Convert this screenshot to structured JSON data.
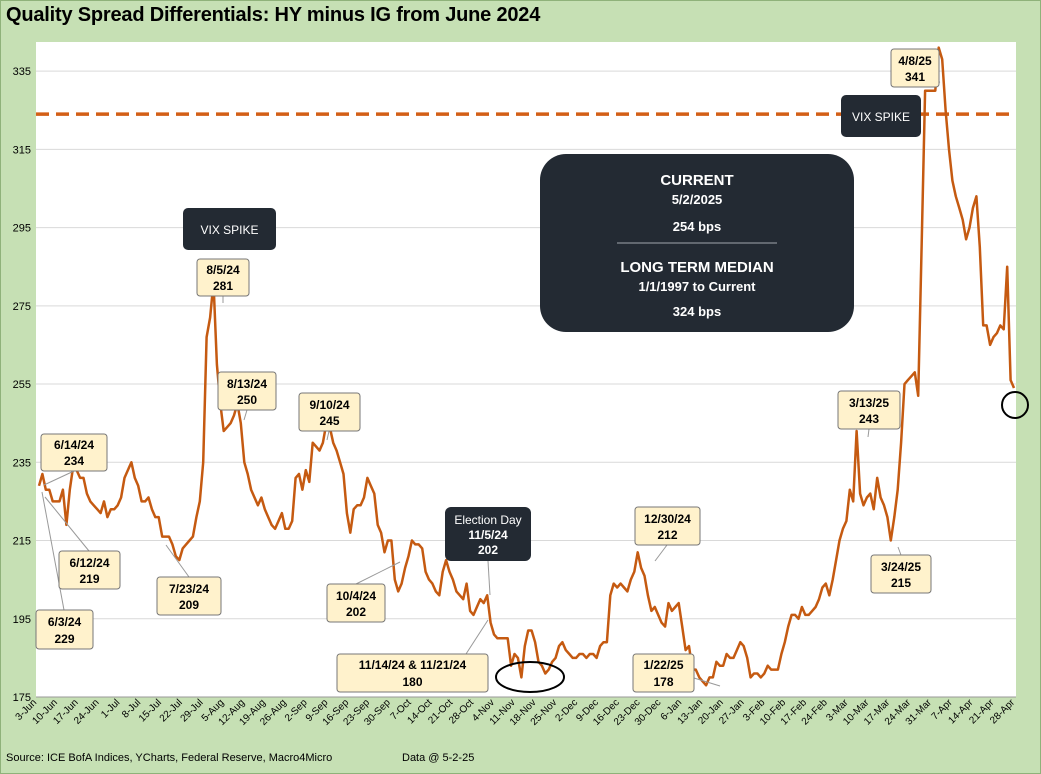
{
  "chart_data": {
    "type": "line",
    "title": "Quality Spread Differentials: HY minus IG from June 2024",
    "ylim": [
      175,
      345
    ],
    "yticks": [
      175,
      195,
      215,
      235,
      255,
      275,
      295,
      315,
      335
    ],
    "grid": "horizontal",
    "xlabels": [
      "3-Jun",
      "10-Jun",
      "17-Jun",
      "24-Jun",
      "1-Jul",
      "8-Jul",
      "15-Jul",
      "22-Jul",
      "29-Jul",
      "5-Aug",
      "12-Aug",
      "19-Aug",
      "26-Aug",
      "2-Sep",
      "9-Sep",
      "16-Sep",
      "23-Sep",
      "30-Sep",
      "7-Oct",
      "14-Oct",
      "21-Oct",
      "28-Oct",
      "4-Nov",
      "11-Nov",
      "18-Nov",
      "25-Nov",
      "2-Dec",
      "9-Dec",
      "16-Dec",
      "23-Dec",
      "30-Dec",
      "6-Jan",
      "13-Jan",
      "20-Jan",
      "27-Jan",
      "3-Feb",
      "10-Feb",
      "17-Feb",
      "24-Feb",
      "3-Mar",
      "10-Mar",
      "17-Mar",
      "24-Mar",
      "31-Mar",
      "7-Apr",
      "14-Apr",
      "21-Apr",
      "28-Apr"
    ],
    "median_line": {
      "value": 324,
      "color": "#d35f16"
    },
    "series_color": "#c55a11",
    "values": [
      229,
      232,
      228,
      228,
      225,
      225,
      225,
      228,
      219,
      228,
      234,
      233,
      231,
      231,
      227,
      225,
      224,
      223,
      222,
      225,
      221,
      223,
      223,
      224,
      226,
      231,
      233,
      235,
      231,
      229,
      225,
      225,
      226,
      223,
      221,
      221,
      216,
      216,
      216,
      214,
      211,
      210,
      213,
      214,
      215,
      216,
      221,
      225,
      235,
      267,
      272,
      281,
      260,
      250,
      243,
      244,
      245,
      247,
      250,
      245,
      235,
      232,
      228,
      226,
      224,
      226,
      223,
      221,
      219,
      218,
      220,
      222,
      218,
      218,
      220,
      231,
      232,
      228,
      233,
      230,
      240,
      239,
      238,
      240,
      245,
      244,
      240,
      238,
      235,
      232,
      222,
      217,
      223,
      224,
      224,
      226,
      231,
      229,
      227,
      219,
      217,
      212,
      215,
      215,
      205,
      202,
      204,
      208,
      211,
      215,
      214,
      214,
      213,
      207,
      205,
      204,
      202,
      201,
      207,
      210,
      207,
      205,
      202,
      201,
      200,
      204,
      197,
      196,
      198,
      200,
      199,
      201,
      194,
      191,
      190,
      190,
      190,
      190,
      183,
      186,
      185,
      180,
      188,
      192,
      192,
      189,
      184,
      183,
      181,
      182,
      184,
      185,
      188,
      189,
      187,
      186,
      185,
      185,
      186,
      186,
      185,
      186,
      186,
      185,
      188,
      189,
      189,
      201,
      204,
      203,
      204,
      203,
      202,
      205,
      207,
      212,
      208,
      206,
      201,
      197,
      198,
      196,
      194,
      193,
      199,
      197,
      198,
      199,
      193,
      187,
      188,
      182,
      182,
      180,
      179,
      178,
      180,
      180,
      184,
      183,
      183,
      186,
      185,
      185,
      187,
      189,
      188,
      185,
      180,
      181,
      181,
      180,
      181,
      183,
      182,
      182,
      182,
      186,
      189,
      193,
      196,
      196,
      195,
      198,
      196,
      196,
      197,
      198,
      200,
      203,
      204,
      201,
      205,
      210,
      215,
      218,
      220,
      228,
      225,
      243,
      227,
      224,
      226,
      227,
      223,
      231,
      226,
      224,
      221,
      215,
      221,
      228,
      240,
      255,
      256,
      257,
      258,
      252,
      290,
      330,
      330,
      330,
      330,
      341,
      338,
      325,
      315,
      307,
      303,
      300,
      297,
      292,
      295,
      300,
      303,
      290,
      270,
      270,
      265,
      267,
      268,
      270,
      269,
      285,
      256,
      254
    ]
  },
  "axis": {
    "y_labels": [
      "175",
      "195",
      "215",
      "235",
      "255",
      "275",
      "295",
      "315",
      "335"
    ]
  },
  "annotations": [
    {
      "id": "jun14",
      "line1": "6/14/24",
      "line2": "234"
    },
    {
      "id": "jun12",
      "line1": "6/12/24",
      "line2": "219"
    },
    {
      "id": "jun3",
      "line1": "6/3/24",
      "line2": "229"
    },
    {
      "id": "jul23",
      "line1": "7/23/24",
      "line2": "209"
    },
    {
      "id": "aug5",
      "line1": "8/5/24",
      "line2": "281"
    },
    {
      "id": "aug13",
      "line1": "8/13/24",
      "line2": "250"
    },
    {
      "id": "sep10",
      "line1": "9/10/24",
      "line2": "245"
    },
    {
      "id": "oct4",
      "line1": "10/4/24",
      "line2": "202"
    },
    {
      "id": "nov14",
      "line1": "11/14/24 & 11/21/24",
      "line2": "180"
    },
    {
      "id": "dec30",
      "line1": "12/30/24",
      "line2": "212"
    },
    {
      "id": "jan22",
      "line1": "1/22/25",
      "line2": "178"
    },
    {
      "id": "mar13",
      "line1": "3/13/25",
      "line2": "243"
    },
    {
      "id": "mar24",
      "line1": "3/24/25",
      "line2": "215"
    },
    {
      "id": "apr8",
      "line1": "4/8/25",
      "line2": "341"
    }
  ],
  "dark_labels": {
    "vix1": "VIX SPIKE",
    "vix2": "VIX SPIKE",
    "election_line1": "Election Day",
    "election_line2": "11/5/24",
    "election_line3": "202"
  },
  "summary_box": {
    "current_heading": "CURRENT",
    "current_date": "5/2/2025",
    "current_value": "254 bps",
    "median_heading": "LONG TERM MEDIAN",
    "median_range": "1/1/1997 to Current",
    "median_value": "324 bps"
  },
  "footer": {
    "source": "Source: ICE BofA Indices, YCharts, Federal Reserve, Macro4Micro",
    "as_of": "Data @ 5-2-25"
  }
}
